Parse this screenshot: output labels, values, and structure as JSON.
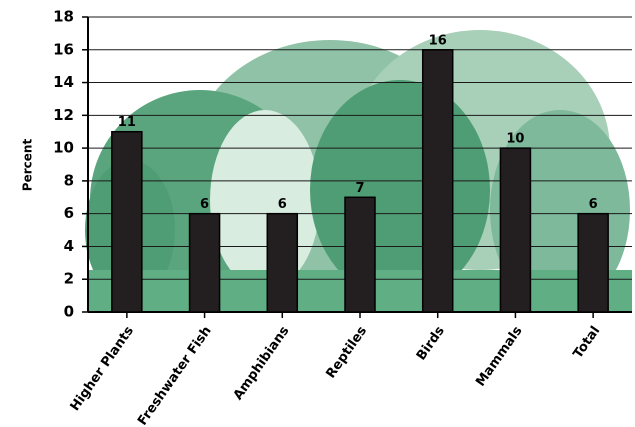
{
  "chart_data": {
    "type": "bar",
    "y_label": "Percent",
    "categories": [
      "Higher Plants",
      "Freshwater Fish",
      "Amphibians",
      "Reptiles",
      "Birds",
      "Mammals",
      "Total"
    ],
    "values": [
      11,
      6,
      6,
      7,
      16,
      10,
      6
    ],
    "color": "#231f20",
    "ylim": [
      0,
      18
    ],
    "yticks": [
      0,
      2,
      4,
      6,
      8,
      10,
      12,
      14,
      16,
      18
    ],
    "grid": true
  }
}
